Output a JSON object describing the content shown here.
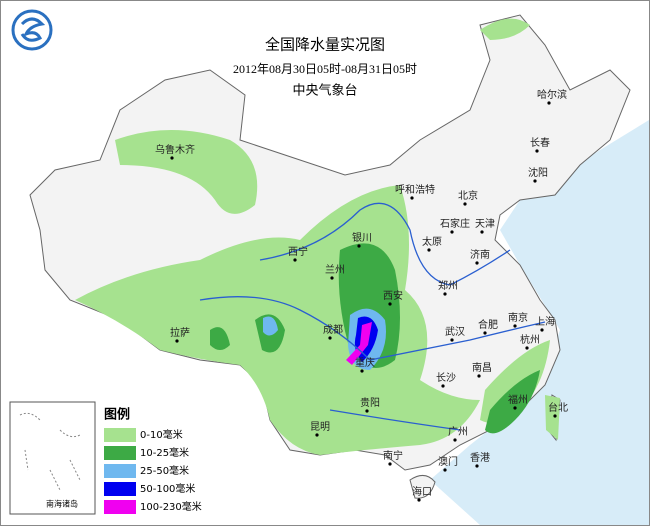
{
  "header": {
    "title": "全国降水量实况图",
    "subtitle": "2012年08月30日05时-08月31日05时",
    "agency": "中央气象台"
  },
  "legend": {
    "title": "图例",
    "items": [
      {
        "label": "0-10毫米",
        "color": "#a6e28f"
      },
      {
        "label": "10-25毫米",
        "color": "#3daa45"
      },
      {
        "label": "25-50毫米",
        "color": "#6fb8ef"
      },
      {
        "label": "50-100毫米",
        "color": "#0000f0"
      },
      {
        "label": "100-230毫米",
        "color": "#f000f0"
      }
    ]
  },
  "inset": {
    "label": "南海诸岛"
  },
  "cities": [
    "哈尔滨",
    "长春",
    "沈阳",
    "乌鲁木齐",
    "呼和浩特",
    "北京",
    "天津",
    "石家庄",
    "太原",
    "银川",
    "西宁",
    "兰州",
    "济南",
    "西安",
    "郑州",
    "拉萨",
    "成都",
    "合肥",
    "南京",
    "上海",
    "武汉",
    "杭州",
    "重庆",
    "南昌",
    "长沙",
    "贵阳",
    "福州",
    "台北",
    "昆明",
    "广州",
    "南宁",
    "香港",
    "澳门",
    "海口"
  ]
}
